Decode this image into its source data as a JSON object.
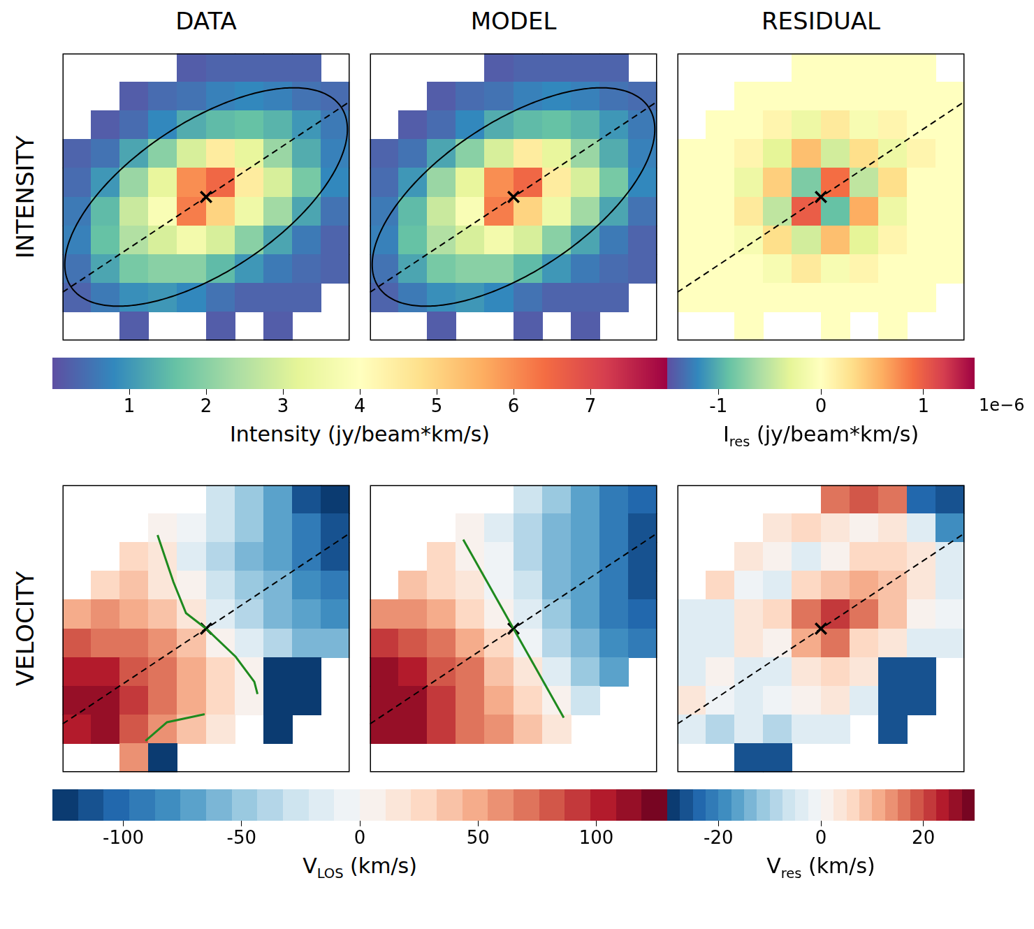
{
  "row_labels": [
    "INTENSITY",
    "VELOCITY"
  ],
  "column_titles": [
    "DATA",
    "MODEL",
    "RESIDUAL"
  ],
  "colorbars": [
    {
      "row": "INTENSITY",
      "columns": [
        "DATA",
        "MODEL"
      ],
      "label": {
        "text": "Intensity (jy/beam*km/s)"
      },
      "range": [
        0,
        8
      ],
      "ticks": [
        1,
        2,
        3,
        4,
        5,
        6,
        7
      ],
      "color": "Spectral_r"
    },
    {
      "row": "INTENSITY",
      "columns": [
        "RESIDUAL"
      ],
      "label": {
        "text": "I",
        "sub": "res",
        "after": " (jy/beam*km/s)"
      },
      "offset_label": "1e−6",
      "range": [
        -1.5,
        1.5
      ],
      "ticks": [
        -1,
        0,
        1
      ],
      "color": "Spectral_r"
    },
    {
      "row": "VELOCITY",
      "columns": [
        "DATA",
        "MODEL"
      ],
      "label": {
        "text": "V",
        "sub": "LOS",
        "after": " (km/s)"
      },
      "range": [
        -130,
        130
      ],
      "ticks": [
        -100,
        -50,
        0,
        50,
        100
      ],
      "color": "RdBu_r"
    },
    {
      "row": "VELOCITY",
      "columns": [
        "RESIDUAL"
      ],
      "label": {
        "text": "V",
        "sub": "res",
        "after": " (km/s)"
      },
      "range": [
        -30,
        30
      ],
      "ticks": [
        -20,
        0,
        20
      ],
      "color": "RdBu_r"
    }
  ],
  "chart_data": [
    {
      "type": "heatmap",
      "row": "INTENSITY",
      "column": "DATA",
      "tick_labels": false,
      "xlim": [
        0,
        10
      ],
      "ylim": [
        0,
        10
      ],
      "cells": [
        [
          null,
          null,
          null,
          null,
          0.2,
          0.3,
          0.3,
          0.3,
          0.3,
          null
        ],
        [
          null,
          null,
          0.2,
          0.4,
          0.5,
          0.7,
          0.8,
          0.7,
          0.5,
          0.4
        ],
        [
          null,
          0.2,
          0.4,
          0.8,
          1.3,
          1.5,
          1.6,
          1.4,
          1.0,
          0.6
        ],
        [
          0.3,
          0.5,
          1.2,
          2.0,
          3.0,
          4.5,
          3.3,
          2.2,
          1.3,
          0.7
        ],
        [
          0.4,
          1.0,
          2.2,
          3.3,
          6.0,
          6.5,
          4.5,
          3.0,
          1.8,
          0.8
        ],
        [
          0.6,
          1.5,
          2.8,
          3.8,
          6.2,
          5.0,
          3.5,
          2.3,
          1.2,
          0.5
        ],
        [
          0.7,
          1.6,
          2.5,
          3.0,
          3.6,
          3.0,
          2.0,
          1.2,
          0.6,
          0.3
        ],
        [
          0.5,
          1.2,
          1.8,
          2.0,
          2.0,
          1.5,
          1.0,
          0.6,
          0.4,
          0.3
        ],
        [
          0.3,
          0.6,
          0.9,
          1.0,
          0.8,
          0.5,
          0.3,
          0.3,
          0.3,
          null
        ],
        [
          null,
          null,
          0.2,
          null,
          null,
          0.2,
          null,
          0.2,
          null,
          null
        ]
      ],
      "major_axis": [
        [
          0,
          1.68
        ],
        [
          10,
          8.32
        ]
      ],
      "center": [
        5,
        5
      ],
      "ellipse": {
        "center": [
          5,
          5
        ],
        "semi_major": 5.65,
        "semi_minor": 2.6,
        "angle": 33.6
      }
    },
    {
      "type": "heatmap",
      "row": "INTENSITY",
      "column": "MODEL",
      "tick_labels": false,
      "xlim": [
        0,
        10
      ],
      "ylim": [
        0,
        10
      ],
      "cells": [
        [
          null,
          null,
          null,
          null,
          0.2,
          0.3,
          0.3,
          0.3,
          0.3,
          null
        ],
        [
          null,
          null,
          0.2,
          0.4,
          0.5,
          0.7,
          0.8,
          0.7,
          0.5,
          0.4
        ],
        [
          null,
          0.2,
          0.4,
          0.8,
          1.3,
          1.5,
          1.6,
          1.4,
          1.0,
          0.6
        ],
        [
          0.3,
          0.5,
          1.2,
          2.0,
          3.0,
          4.5,
          3.3,
          2.2,
          1.3,
          0.7
        ],
        [
          0.4,
          1.0,
          2.2,
          3.3,
          6.0,
          6.5,
          4.5,
          3.0,
          1.8,
          0.8
        ],
        [
          0.6,
          1.5,
          2.8,
          3.8,
          6.2,
          5.0,
          3.5,
          2.3,
          1.2,
          0.5
        ],
        [
          0.7,
          1.6,
          2.5,
          3.0,
          3.6,
          3.0,
          2.0,
          1.2,
          0.6,
          0.3
        ],
        [
          0.5,
          1.2,
          1.8,
          2.0,
          2.0,
          1.5,
          1.0,
          0.6,
          0.4,
          0.3
        ],
        [
          0.3,
          0.6,
          0.9,
          1.0,
          0.8,
          0.5,
          0.3,
          0.3,
          0.3,
          null
        ],
        [
          null,
          null,
          0.2,
          null,
          null,
          0.2,
          null,
          0.2,
          null,
          null
        ]
      ],
      "major_axis": [
        [
          0,
          1.68
        ],
        [
          10,
          8.32
        ]
      ],
      "center": [
        5,
        5
      ],
      "ellipse": {
        "center": [
          5,
          5
        ],
        "semi_major": 5.65,
        "semi_minor": 2.6,
        "angle": 33.6
      }
    },
    {
      "type": "heatmap",
      "row": "INTENSITY",
      "column": "RESIDUAL",
      "tick_labels": false,
      "xlim": [
        0,
        10
      ],
      "ylim": [
        0,
        10
      ],
      "cells": [
        [
          null,
          null,
          null,
          null,
          0,
          0,
          0,
          0,
          0,
          null
        ],
        [
          null,
          null,
          0,
          0,
          0,
          0,
          0,
          0,
          0,
          0
        ],
        [
          null,
          0,
          0,
          0.1,
          -0.2,
          0.2,
          -0.1,
          0.1,
          0,
          0
        ],
        [
          0,
          0,
          0.1,
          -0.3,
          0.5,
          -0.4,
          0.3,
          -0.2,
          0.1,
          0
        ],
        [
          0,
          0,
          -0.2,
          0.4,
          -0.8,
          0.9,
          -0.5,
          0.3,
          0,
          0
        ],
        [
          0,
          0,
          0.2,
          -0.5,
          1.0,
          -0.9,
          0.6,
          -0.2,
          0,
          0
        ],
        [
          0,
          0,
          -0.1,
          0.3,
          -0.4,
          0.5,
          -0.3,
          0.1,
          0,
          0
        ],
        [
          0,
          0,
          0,
          -0.1,
          0.2,
          -0.1,
          0.1,
          0,
          0,
          0
        ],
        [
          0,
          0,
          0,
          0,
          0,
          0,
          0,
          0,
          0,
          null
        ],
        [
          null,
          null,
          0,
          null,
          null,
          0,
          null,
          0,
          null,
          null
        ]
      ],
      "major_axis": [
        [
          0,
          1.68
        ],
        [
          10,
          8.32
        ]
      ],
      "center": [
        5,
        5
      ]
    },
    {
      "type": "heatmap",
      "row": "VELOCITY",
      "column": "DATA",
      "tick_labels": false,
      "xlim": [
        0,
        10
      ],
      "ylim": [
        0,
        10
      ],
      "cells": [
        [
          null,
          null,
          null,
          null,
          null,
          -30,
          -50,
          -70,
          -110,
          -125
        ],
        [
          null,
          null,
          null,
          10,
          -10,
          -30,
          -50,
          -70,
          -90,
          -110
        ],
        [
          null,
          null,
          25,
          15,
          -15,
          -35,
          -55,
          -75,
          -95,
          -110
        ],
        [
          null,
          30,
          35,
          20,
          3,
          -25,
          -45,
          -65,
          -85,
          -95
        ],
        [
          45,
          55,
          50,
          40,
          20,
          -15,
          -40,
          -55,
          -70,
          -80
        ],
        [
          80,
          75,
          70,
          55,
          35,
          10,
          -20,
          -40,
          -55,
          -60
        ],
        [
          105,
          100,
          85,
          65,
          45,
          25,
          5,
          -130,
          -130,
          null
        ],
        [
          115,
          110,
          90,
          70,
          50,
          25,
          10,
          -130,
          -130,
          null
        ],
        [
          100,
          110,
          80,
          60,
          40,
          15,
          null,
          -130,
          null,
          null
        ],
        [
          null,
          null,
          60,
          -130,
          null,
          null,
          null,
          null,
          null,
          null
        ]
      ],
      "major_axis": [
        [
          0,
          1.68
        ],
        [
          10,
          8.32
        ]
      ],
      "center": [
        5,
        5
      ],
      "contours": [
        [
          [
            3.31,
            8.26
          ],
          [
            3.64,
            7.28
          ],
          [
            3.86,
            6.63
          ],
          [
            4.3,
            5.54
          ],
          [
            5.0,
            5.0
          ],
          [
            6.03,
            4.02
          ],
          [
            6.68,
            3.15
          ],
          [
            6.79,
            2.72
          ]
        ],
        [
          [
            2.89,
            1.09
          ],
          [
            3.64,
            1.74
          ],
          [
            4.95,
            2.02
          ]
        ]
      ]
    },
    {
      "type": "heatmap",
      "row": "VELOCITY",
      "column": "MODEL",
      "tick_labels": false,
      "xlim": [
        0,
        10
      ],
      "ylim": [
        0,
        10
      ],
      "cells": [
        [
          null,
          null,
          null,
          null,
          null,
          -25,
          -45,
          -70,
          -95,
          -105
        ],
        [
          null,
          null,
          null,
          5,
          -15,
          -35,
          -55,
          -75,
          -95,
          -110
        ],
        [
          null,
          null,
          25,
          10,
          -10,
          -35,
          -55,
          -75,
          -95,
          -110
        ],
        [
          null,
          35,
          30,
          15,
          -5,
          -30,
          -55,
          -75,
          -95,
          -110
        ],
        [
          55,
          55,
          45,
          30,
          10,
          -20,
          -45,
          -70,
          -90,
          -105
        ],
        [
          90,
          80,
          70,
          50,
          25,
          -5,
          -35,
          -60,
          -80,
          -95
        ],
        [
          110,
          100,
          85,
          65,
          40,
          15,
          -15,
          -45,
          -70,
          null
        ],
        [
          115,
          110,
          95,
          75,
          50,
          25,
          5,
          -25,
          null,
          null
        ],
        [
          110,
          110,
          95,
          75,
          55,
          35,
          15,
          null,
          null,
          null
        ],
        [
          null,
          null,
          null,
          null,
          null,
          null,
          null,
          null,
          null,
          null
        ]
      ],
      "major_axis": [
        [
          0,
          1.68
        ],
        [
          10,
          8.32
        ]
      ],
      "center": [
        5,
        5
      ],
      "contours": [
        [
          [
            3.25,
            8.1
          ],
          [
            6.75,
            1.9
          ]
        ]
      ]
    },
    {
      "type": "heatmap",
      "row": "VELOCITY",
      "column": "RESIDUAL",
      "tick_labels": false,
      "xlim": [
        0,
        10
      ],
      "ylim": [
        0,
        10
      ],
      "cells": [
        [
          null,
          null,
          null,
          null,
          null,
          15,
          18,
          15,
          -25,
          -27
        ],
        [
          null,
          null,
          null,
          3,
          5,
          3,
          2,
          3,
          -5,
          -20
        ],
        [
          null,
          null,
          3,
          2,
          -3,
          2,
          5,
          5,
          3,
          -3
        ],
        [
          null,
          5,
          -2,
          -3,
          5,
          8,
          12,
          8,
          3,
          -3
        ],
        [
          -3,
          -5,
          3,
          5,
          15,
          22,
          15,
          8,
          2,
          -2
        ],
        [
          -5,
          -3,
          3,
          2,
          10,
          15,
          5,
          3,
          -3,
          -5
        ],
        [
          -3,
          2,
          -3,
          -5,
          3,
          5,
          3,
          -27,
          -27,
          null
        ],
        [
          3,
          -2,
          -5,
          -2,
          2,
          3,
          -3,
          -27,
          -27,
          null
        ],
        [
          -3,
          -8,
          -5,
          -10,
          -5,
          -3,
          null,
          -27,
          null,
          null
        ],
        [
          null,
          null,
          -27,
          -27,
          null,
          null,
          null,
          null,
          null,
          null
        ]
      ],
      "major_axis": [
        [
          0,
          1.68
        ],
        [
          10,
          8.32
        ]
      ],
      "center": [
        5,
        5
      ]
    }
  ]
}
